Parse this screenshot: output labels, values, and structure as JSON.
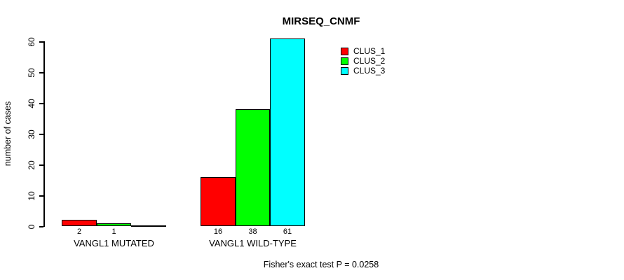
{
  "window": {
    "background": "#ffffff"
  },
  "chart_data": {
    "type": "bar",
    "title": "MIRSEQ_CNMF",
    "ylabel": "number of cases",
    "xlabel": "",
    "ylim": [
      0,
      60
    ],
    "yticks": [
      0,
      10,
      20,
      30,
      40,
      50,
      60
    ],
    "categories": [
      "VANGL1 MUTATED",
      "VANGL1 WILD-TYPE"
    ],
    "series": [
      {
        "name": "CLUS_1",
        "color": "#ff0000",
        "values": [
          2,
          16
        ]
      },
      {
        "name": "CLUS_2",
        "color": "#00ff00",
        "values": [
          1,
          38
        ]
      },
      {
        "name": "CLUS_3",
        "color": "#00ffff",
        "values": [
          0,
          61
        ]
      }
    ],
    "bar_value_labels": [
      [
        "2",
        "1",
        ""
      ],
      [
        "16",
        "38",
        "61"
      ]
    ],
    "legend": {
      "position": "top-right",
      "entries": [
        "CLUS_1",
        "CLUS_2",
        "CLUS_3"
      ]
    },
    "grid": false,
    "annotation": "Fisher's exact test P = 0.0258",
    "axis_color": "#000000",
    "text_color": "#000000"
  }
}
